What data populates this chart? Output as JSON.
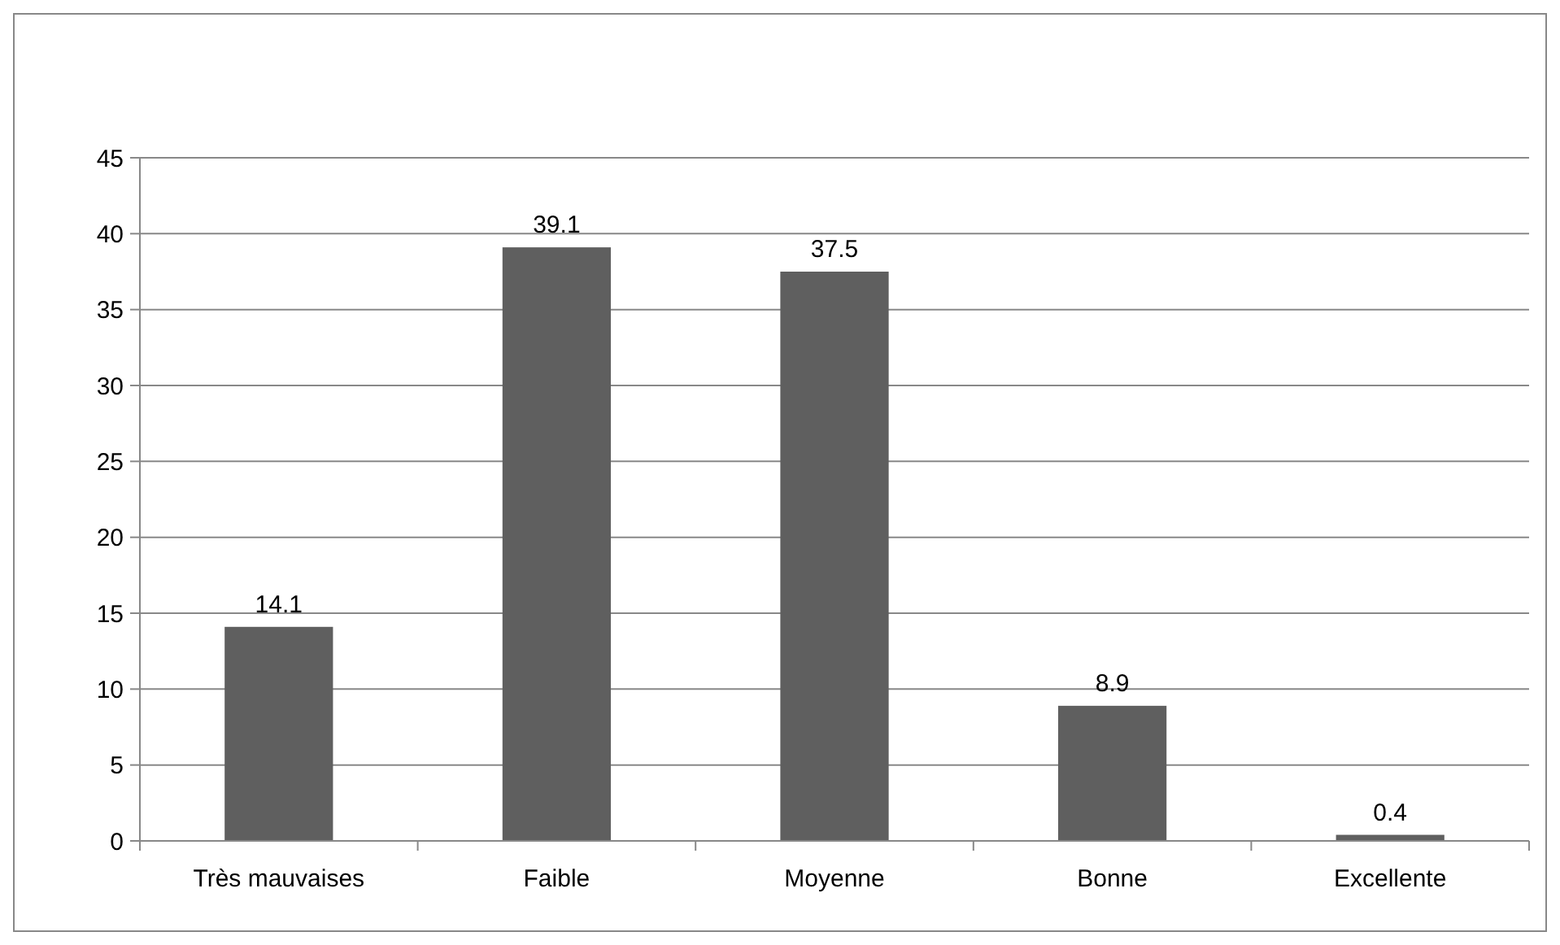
{
  "chart_data": {
    "type": "bar",
    "categories": [
      "Très mauvaises",
      "Faible",
      "Moyenne",
      "Bonne",
      "Excellente"
    ],
    "values": [
      14.1,
      39.1,
      37.5,
      8.9,
      0.4
    ],
    "color": "#5f5f5f",
    "ylim": [
      0,
      45
    ],
    "yticks": [
      0,
      5,
      10,
      15,
      20,
      25,
      30,
      35,
      40,
      45
    ],
    "grid": "y",
    "data_labels": true
  }
}
